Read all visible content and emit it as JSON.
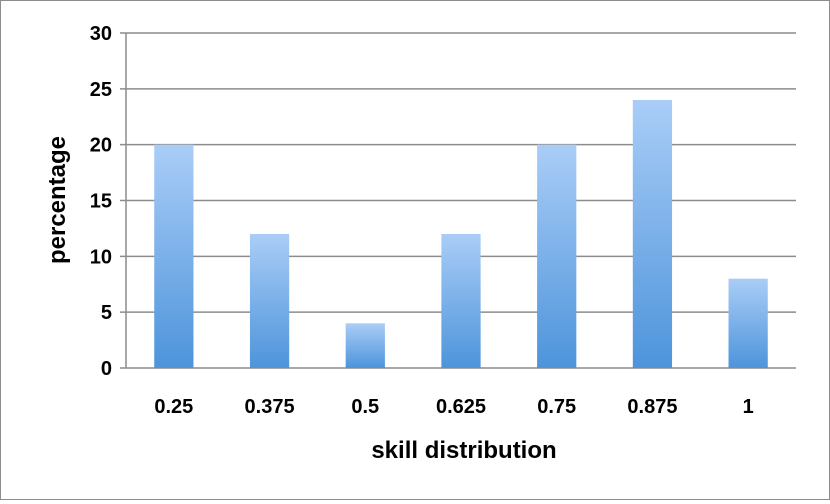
{
  "chart_data": {
    "type": "bar",
    "categories": [
      "0.25",
      "0.375",
      "0.5",
      "0.625",
      "0.75",
      "0.875",
      "1"
    ],
    "values": [
      20,
      12,
      4,
      12,
      20,
      24,
      8
    ],
    "xlabel": "skill distribution",
    "ylabel": "percentage",
    "ylim": [
      0,
      30
    ],
    "yticks": [
      "0",
      "5",
      "10",
      "15",
      "20",
      "25",
      "30"
    ],
    "grid": true,
    "legend": "none",
    "colors": {
      "bar_top": "#aacdf7",
      "bar_bottom": "#4d94db",
      "grid": "#8c8c8c",
      "border": "#8c8c8c"
    }
  }
}
